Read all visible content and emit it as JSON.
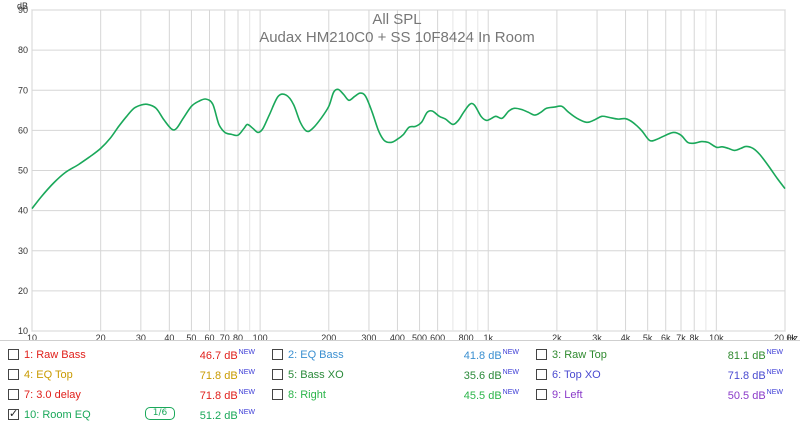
{
  "chart_data": {
    "type": "line",
    "title": "All SPL",
    "subtitle": "Audax HM210C0 + SS 10F8424 In Room",
    "ylabel": "dB",
    "xlabel_unit": "Hz",
    "x_scale": "log",
    "xlim": [
      10,
      20000
    ],
    "ylim": [
      10,
      90
    ],
    "y_ticks": [
      10,
      20,
      30,
      40,
      50,
      60,
      70,
      80,
      90
    ],
    "x_ticks": [
      {
        "v": 10,
        "label": "10"
      },
      {
        "v": 20,
        "label": "20"
      },
      {
        "v": 30,
        "label": "30"
      },
      {
        "v": 40,
        "label": "40"
      },
      {
        "v": 50,
        "label": "50"
      },
      {
        "v": 60,
        "label": "60"
      },
      {
        "v": 70,
        "label": "70"
      },
      {
        "v": 80,
        "label": "80"
      },
      {
        "v": 100,
        "label": "100"
      },
      {
        "v": 200,
        "label": "200"
      },
      {
        "v": 300,
        "label": "300"
      },
      {
        "v": 400,
        "label": "400"
      },
      {
        "v": 500,
        "label": "500"
      },
      {
        "v": 600,
        "label": "600"
      },
      {
        "v": 800,
        "label": "800"
      },
      {
        "v": 1000,
        "label": "1k"
      },
      {
        "v": 2000,
        "label": "2k"
      },
      {
        "v": 3000,
        "label": "3k"
      },
      {
        "v": 4000,
        "label": "4k"
      },
      {
        "v": 5000,
        "label": "5k"
      },
      {
        "v": 6000,
        "label": "6k"
      },
      {
        "v": 7000,
        "label": "7k"
      },
      {
        "v": 8000,
        "label": "8k"
      },
      {
        "v": 10000,
        "label": "10k"
      },
      {
        "v": 20000,
        "label": "20.0k"
      }
    ],
    "minor_x": [
      90,
      700,
      900,
      9000
    ],
    "grid": true,
    "series": [
      {
        "name": "10: Room EQ",
        "color": "#1aa85a",
        "points": [
          [
            10,
            40.5
          ],
          [
            11,
            43.5
          ],
          [
            12.5,
            47
          ],
          [
            14,
            49.5
          ],
          [
            16,
            51.5
          ],
          [
            18,
            53.5
          ],
          [
            20,
            55.5
          ],
          [
            22,
            58
          ],
          [
            24,
            61
          ],
          [
            26,
            63.5
          ],
          [
            28,
            65.5
          ],
          [
            30,
            66.3
          ],
          [
            32,
            66.5
          ],
          [
            35,
            65.5
          ],
          [
            38,
            62.5
          ],
          [
            41,
            60.3
          ],
          [
            43,
            60.5
          ],
          [
            46,
            63
          ],
          [
            50,
            66
          ],
          [
            54,
            67.3
          ],
          [
            58,
            67.8
          ],
          [
            62,
            66.5
          ],
          [
            66,
            61.5
          ],
          [
            70,
            59.5
          ],
          [
            75,
            59
          ],
          [
            80,
            58.8
          ],
          [
            85,
            60.5
          ],
          [
            88,
            61.5
          ],
          [
            93,
            60.5
          ],
          [
            98,
            59.5
          ],
          [
            103,
            60.5
          ],
          [
            110,
            64
          ],
          [
            120,
            68.5
          ],
          [
            130,
            68.8
          ],
          [
            140,
            66.5
          ],
          [
            150,
            62
          ],
          [
            160,
            59.8
          ],
          [
            170,
            60.5
          ],
          [
            185,
            63
          ],
          [
            200,
            66
          ],
          [
            210,
            69.5
          ],
          [
            220,
            70.2
          ],
          [
            232,
            69
          ],
          [
            245,
            67.5
          ],
          [
            260,
            68.5
          ],
          [
            275,
            69.3
          ],
          [
            290,
            68.5
          ],
          [
            310,
            64.5
          ],
          [
            330,
            60
          ],
          [
            350,
            57.5
          ],
          [
            375,
            57
          ],
          [
            400,
            57.8
          ],
          [
            425,
            59
          ],
          [
            450,
            60.8
          ],
          [
            480,
            61
          ],
          [
            510,
            62
          ],
          [
            540,
            64.5
          ],
          [
            570,
            64.8
          ],
          [
            610,
            63.5
          ],
          [
            650,
            62.8
          ],
          [
            700,
            61.5
          ],
          [
            740,
            62.5
          ],
          [
            780,
            64.5
          ],
          [
            830,
            66.5
          ],
          [
            870,
            66.3
          ],
          [
            930,
            63.5
          ],
          [
            980,
            62.5
          ],
          [
            1020,
            62.8
          ],
          [
            1080,
            63.5
          ],
          [
            1150,
            63
          ],
          [
            1230,
            64.8
          ],
          [
            1300,
            65.5
          ],
          [
            1400,
            65.2
          ],
          [
            1500,
            64.5
          ],
          [
            1600,
            63.8
          ],
          [
            1700,
            64.5
          ],
          [
            1800,
            65.5
          ],
          [
            1950,
            65.8
          ],
          [
            2100,
            66
          ],
          [
            2250,
            64.5
          ],
          [
            2450,
            63
          ],
          [
            2700,
            62
          ],
          [
            2900,
            62.5
          ],
          [
            3150,
            63.5
          ],
          [
            3400,
            63.2
          ],
          [
            3700,
            62.8
          ],
          [
            4000,
            62.9
          ],
          [
            4300,
            62
          ],
          [
            4700,
            60
          ],
          [
            5100,
            57.5
          ],
          [
            5500,
            57.8
          ],
          [
            6000,
            58.8
          ],
          [
            6500,
            59.5
          ],
          [
            7000,
            58.8
          ],
          [
            7500,
            57
          ],
          [
            8000,
            56.8
          ],
          [
            8600,
            57.2
          ],
          [
            9200,
            57
          ],
          [
            10000,
            55.8
          ],
          [
            10600,
            55.9
          ],
          [
            11300,
            55.5
          ],
          [
            12000,
            55
          ],
          [
            12800,
            55.5
          ],
          [
            13500,
            56
          ],
          [
            14500,
            55.5
          ],
          [
            15500,
            54
          ],
          [
            17000,
            51
          ],
          [
            18500,
            48
          ],
          [
            20000,
            45.5
          ]
        ]
      }
    ]
  },
  "legend": [
    {
      "label": "1: Raw Bass",
      "value": "46.7 dB",
      "sup": "NEW",
      "color": "#e0201b",
      "checked": false
    },
    {
      "label": "2: EQ Bass",
      "value": "41.8 dB",
      "sup": "NEW",
      "color": "#3a8fd0",
      "checked": false
    },
    {
      "label": "3: Raw Top",
      "value": "81.1 dB",
      "sup": "NEW",
      "color": "#2f8a2f",
      "checked": false
    },
    {
      "label": "4: EQ Top",
      "value": "71.8 dB",
      "sup": "NEW",
      "color": "#c99a00",
      "checked": false
    },
    {
      "label": "5: Bass XO",
      "value": "35.6 dB",
      "sup": "NEW",
      "color": "#2a8a3a",
      "checked": false
    },
    {
      "label": "6: Top XO",
      "value": "71.8 dB",
      "sup": "NEW",
      "color": "#4a4ad0",
      "checked": false
    },
    {
      "label": "7: 3.0 delay",
      "value": "71.8 dB",
      "sup": "NEW",
      "color": "#e0201b",
      "checked": false
    },
    {
      "label": "8: Right",
      "value": "45.5 dB",
      "sup": "NEW",
      "color": "#2bb54a",
      "checked": false
    },
    {
      "label": "9: Left",
      "value": "50.5 dB",
      "sup": "NEW",
      "color": "#8a3ac9",
      "checked": false
    },
    {
      "label": "10: Room EQ",
      "value": "51.2 dB",
      "sup": "NEW",
      "color": "#1aa85a",
      "checked": true,
      "smoothing": "1/6"
    }
  ]
}
